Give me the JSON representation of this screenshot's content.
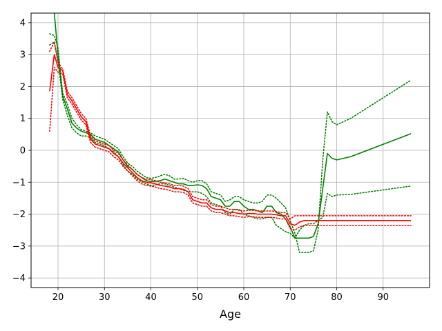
{
  "chart_data": {
    "type": "line",
    "title": "",
    "xlabel": "Age",
    "ylabel": "",
    "xlim": [
      14.2,
      100.0
    ],
    "ylim": [
      -4.3,
      4.3
    ],
    "xticks": [
      20,
      30,
      40,
      50,
      60,
      70,
      80,
      90
    ],
    "yticks": [
      -4,
      -3,
      -2,
      -1,
      0,
      1,
      2,
      3,
      4
    ],
    "grid": true,
    "legend": "none",
    "colors": {
      "green": "#008000",
      "red": "#ff0000",
      "grid": "#b0b0b0"
    },
    "series": [
      {
        "color": "#008000",
        "style": "solid",
        "x": [
          19.2,
          20,
          21,
          22,
          23,
          24,
          25,
          26,
          27,
          28,
          29,
          30,
          31,
          32,
          33,
          34,
          35,
          36,
          37,
          38,
          39,
          40,
          41,
          42,
          43,
          44,
          45,
          46,
          47,
          48,
          49,
          50,
          51,
          52,
          53,
          54,
          55,
          56,
          57,
          58,
          59,
          60,
          61,
          62,
          63,
          64,
          65,
          66,
          67,
          68,
          69,
          70,
          71,
          72,
          73,
          74,
          75,
          76,
          77,
          78,
          79,
          80,
          83,
          96
        ],
        "y": [
          4.3,
          3.0,
          1.7,
          1.3,
          0.85,
          0.7,
          0.6,
          0.55,
          0.5,
          0.35,
          0.3,
          0.25,
          0.15,
          0.05,
          -0.05,
          -0.3,
          -0.5,
          -0.6,
          -0.75,
          -0.85,
          -0.95,
          -0.98,
          -0.97,
          -0.95,
          -0.9,
          -0.95,
          -1.0,
          -1.05,
          -1.05,
          -1.1,
          -1.1,
          -1.08,
          -1.1,
          -1.2,
          -1.45,
          -1.5,
          -1.55,
          -1.75,
          -1.75,
          -1.6,
          -1.6,
          -1.75,
          -1.85,
          -1.85,
          -1.9,
          -1.95,
          -1.75,
          -1.75,
          -1.95,
          -2.0,
          -2.15,
          -2.4,
          -2.75,
          -2.75,
          -2.75,
          -2.75,
          -2.7,
          -2.3,
          -1.2,
          -0.1,
          -0.25,
          -0.3,
          -0.2,
          0.52
        ]
      },
      {
        "color": "#008000",
        "style": "dotted",
        "x": [
          18.2,
          19.2,
          20,
          21,
          22,
          23,
          24,
          25,
          26,
          27,
          28,
          29,
          30,
          31,
          32,
          33,
          34,
          35,
          36,
          37,
          38,
          39,
          40,
          41,
          42,
          43,
          44,
          45,
          46,
          47,
          48,
          49,
          50,
          51,
          52,
          53,
          54,
          55,
          56,
          57,
          58,
          59,
          60,
          61,
          62,
          63,
          64,
          65,
          66,
          67,
          68,
          69,
          70,
          71,
          72,
          73,
          74,
          75,
          76,
          77,
          78,
          79,
          80,
          83,
          96
        ],
        "y": [
          3.65,
          3.6,
          3.2,
          1.8,
          1.45,
          1.0,
          0.8,
          0.65,
          0.6,
          0.55,
          0.45,
          0.4,
          0.35,
          0.25,
          0.15,
          0.05,
          -0.2,
          -0.4,
          -0.5,
          -0.65,
          -0.75,
          -0.85,
          -0.88,
          -0.85,
          -0.8,
          -0.75,
          -0.8,
          -0.9,
          -0.9,
          -0.88,
          -0.95,
          -1.0,
          -0.95,
          -0.95,
          -1.05,
          -1.3,
          -1.35,
          -1.4,
          -1.6,
          -1.55,
          -1.45,
          -1.45,
          -1.55,
          -1.6,
          -1.65,
          -1.65,
          -1.6,
          -1.4,
          -1.4,
          -1.5,
          -1.65,
          -1.8,
          -2.2,
          -2.6,
          -3.2,
          -3.2,
          -3.2,
          -3.15,
          -2.5,
          -0.3,
          1.2,
          0.9,
          0.8,
          1.0,
          2.2
        ]
      },
      {
        "color": "#008000",
        "style": "dotted",
        "x": [
          18.2,
          19.2,
          20,
          21,
          22,
          23,
          24,
          25,
          26,
          27,
          28,
          29,
          30,
          31,
          32,
          33,
          34,
          35,
          36,
          37,
          38,
          39,
          40,
          41,
          42,
          43,
          44,
          45,
          46,
          47,
          48,
          49,
          50,
          51,
          52,
          53,
          54,
          55,
          56,
          57,
          58,
          59,
          60,
          61,
          62,
          63,
          64,
          65,
          66,
          67,
          68,
          69,
          70,
          71,
          72,
          73,
          74,
          75,
          76,
          77,
          78,
          79,
          80,
          83,
          96
        ],
        "y": [
          3.3,
          3.4,
          2.8,
          1.6,
          1.1,
          0.7,
          0.55,
          0.45,
          0.45,
          0.4,
          0.25,
          0.2,
          0.15,
          0.05,
          -0.05,
          -0.2,
          -0.45,
          -0.65,
          -0.75,
          -0.9,
          -0.98,
          -1.05,
          -1.1,
          -1.08,
          -1.05,
          -1.05,
          -1.1,
          -1.15,
          -1.2,
          -1.25,
          -1.3,
          -1.3,
          -1.3,
          -1.35,
          -1.45,
          -1.65,
          -1.7,
          -1.75,
          -1.95,
          -2.0,
          -1.85,
          -1.85,
          -2.0,
          -2.05,
          -2.1,
          -2.15,
          -2.15,
          -2.1,
          -2.1,
          -2.35,
          -2.45,
          -2.55,
          -2.6,
          -2.75,
          -2.5,
          -2.35,
          -2.3,
          -2.3,
          -2.2,
          -2.1,
          -1.35,
          -1.45,
          -1.4,
          -1.38,
          -1.12
        ]
      },
      {
        "color": "#ff0000",
        "style": "solid",
        "x": [
          18.2,
          19.2,
          20,
          21,
          22,
          23,
          24,
          25,
          26,
          27,
          28,
          29,
          30,
          31,
          32,
          33,
          34,
          35,
          36,
          37,
          38,
          39,
          40,
          41,
          42,
          43,
          44,
          45,
          46,
          47,
          48,
          49,
          50,
          51,
          52,
          53,
          54,
          55,
          56,
          57,
          58,
          59,
          60,
          61,
          62,
          63,
          64,
          65,
          66,
          67,
          68,
          69,
          70,
          71,
          72,
          73,
          74,
          75,
          76,
          77,
          78,
          79,
          80,
          83,
          96
        ],
        "y": [
          1.85,
          3.0,
          2.6,
          2.5,
          1.75,
          1.55,
          1.3,
          1.05,
          0.9,
          0.35,
          0.2,
          0.15,
          0.1,
          0.05,
          -0.1,
          -0.2,
          -0.4,
          -0.55,
          -0.7,
          -0.85,
          -0.95,
          -1.0,
          -1.02,
          -1.05,
          -1.1,
          -1.12,
          -1.15,
          -1.2,
          -1.2,
          -1.22,
          -1.3,
          -1.55,
          -1.6,
          -1.65,
          -1.65,
          -1.8,
          -1.85,
          -1.85,
          -1.9,
          -1.95,
          -1.95,
          -1.98,
          -2.0,
          -1.98,
          -1.98,
          -2.0,
          -2.0,
          -2.0,
          -2.0,
          -2.02,
          -2.05,
          -2.05,
          -2.3,
          -2.35,
          -2.25,
          -2.2,
          -2.2,
          -2.2,
          -2.2,
          -2.2,
          -2.2,
          -2.2,
          -2.2,
          -2.2,
          -2.2
        ]
      },
      {
        "color": "#ff0000",
        "style": "dotted",
        "x": [
          18.2,
          19.2,
          20,
          21,
          22,
          23,
          24,
          25,
          26,
          27,
          28,
          29,
          30,
          31,
          32,
          33,
          34,
          35,
          36,
          37,
          38,
          39,
          40,
          41,
          42,
          43,
          44,
          45,
          46,
          47,
          48,
          49,
          50,
          51,
          52,
          53,
          54,
          55,
          56,
          57,
          58,
          59,
          60,
          61,
          62,
          63,
          64,
          65,
          66,
          67,
          68,
          69,
          70,
          71,
          72,
          73,
          74,
          75,
          76,
          77,
          78,
          79,
          80,
          83,
          96
        ],
        "y": [
          3.1,
          3.4,
          2.75,
          2.55,
          1.85,
          1.65,
          1.4,
          1.15,
          1.0,
          0.45,
          0.3,
          0.25,
          0.2,
          0.15,
          0.0,
          -0.1,
          -0.3,
          -0.45,
          -0.6,
          -0.75,
          -0.85,
          -0.9,
          -0.92,
          -0.95,
          -1.0,
          -1.02,
          -1.05,
          -1.1,
          -1.1,
          -1.12,
          -1.2,
          -1.45,
          -1.5,
          -1.55,
          -1.55,
          -1.7,
          -1.75,
          -1.75,
          -1.8,
          -1.85,
          -1.85,
          -1.88,
          -1.9,
          -1.88,
          -1.88,
          -1.9,
          -1.9,
          -1.9,
          -1.9,
          -1.92,
          -1.95,
          -1.95,
          -2.15,
          -2.05,
          -2.05,
          -2.05,
          -2.05,
          -2.05,
          -2.05,
          -2.05,
          -2.05,
          -2.05,
          -2.05,
          -2.05,
          -2.05
        ]
      },
      {
        "color": "#ff0000",
        "style": "dotted",
        "x": [
          18.2,
          19.2,
          20,
          21,
          22,
          23,
          24,
          25,
          26,
          27,
          28,
          29,
          30,
          31,
          32,
          33,
          34,
          35,
          36,
          37,
          38,
          39,
          40,
          41,
          42,
          43,
          44,
          45,
          46,
          47,
          48,
          49,
          50,
          51,
          52,
          53,
          54,
          55,
          56,
          57,
          58,
          59,
          60,
          61,
          62,
          63,
          64,
          65,
          66,
          67,
          68,
          69,
          70,
          71,
          72,
          73,
          74,
          75,
          76,
          77,
          78,
          79,
          80,
          83,
          96
        ],
        "y": [
          0.6,
          2.6,
          2.45,
          2.4,
          1.65,
          1.45,
          1.2,
          0.95,
          0.8,
          0.25,
          0.1,
          0.05,
          0.0,
          -0.05,
          -0.2,
          -0.3,
          -0.5,
          -0.65,
          -0.8,
          -0.95,
          -1.05,
          -1.1,
          -1.12,
          -1.15,
          -1.2,
          -1.22,
          -1.25,
          -1.3,
          -1.3,
          -1.32,
          -1.4,
          -1.65,
          -1.7,
          -1.75,
          -1.75,
          -1.9,
          -1.95,
          -1.95,
          -2.0,
          -2.05,
          -2.05,
          -2.08,
          -2.1,
          -2.08,
          -2.08,
          -2.1,
          -2.1,
          -2.1,
          -2.1,
          -2.12,
          -2.15,
          -2.15,
          -2.45,
          -2.5,
          -2.4,
          -2.35,
          -2.35,
          -2.35,
          -2.35,
          -2.35,
          -2.35,
          -2.35,
          -2.35,
          -2.35,
          -2.35
        ]
      }
    ]
  }
}
